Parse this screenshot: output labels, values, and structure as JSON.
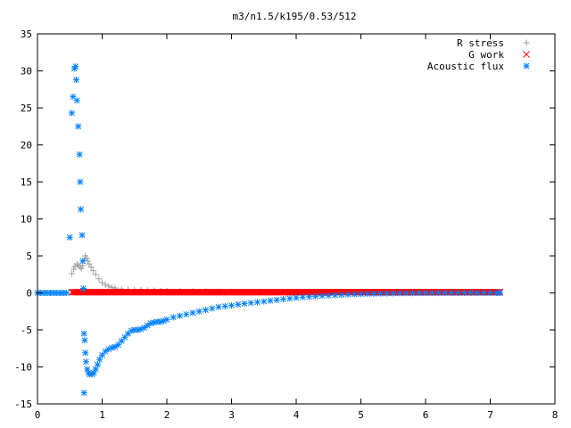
{
  "chart_data": {
    "type": "scatter",
    "title": "m3/n1.5/k195/0.53/512",
    "xlabel": "",
    "ylabel": "",
    "xlim": [
      0,
      8
    ],
    "ylim": [
      -15,
      35
    ],
    "xticks": [
      "0",
      "1",
      "2",
      "3",
      "4",
      "5",
      "6",
      "7",
      "8"
    ],
    "yticks": [
      "-15",
      "-10",
      "-5",
      "0",
      "5",
      "10",
      "15",
      "20",
      "25",
      "30",
      "35"
    ],
    "grid": false,
    "legend_position": "top-right",
    "series": [
      {
        "name": "R stress",
        "marker": "plus",
        "color": "#a0a0a0",
        "points": [
          [
            0.53,
            2.6
          ],
          [
            0.56,
            3.2
          ],
          [
            0.58,
            3.6
          ],
          [
            0.61,
            3.9
          ],
          [
            0.63,
            3.7
          ],
          [
            0.66,
            3.5
          ],
          [
            0.68,
            3.3
          ],
          [
            0.7,
            3.7
          ],
          [
            0.72,
            4.4
          ],
          [
            0.74,
            5.0
          ],
          [
            0.76,
            4.7
          ],
          [
            0.78,
            4.3
          ],
          [
            0.8,
            3.9
          ],
          [
            0.83,
            3.5
          ],
          [
            0.86,
            3.0
          ],
          [
            0.9,
            2.5
          ],
          [
            0.95,
            1.9
          ],
          [
            1.0,
            1.4
          ],
          [
            1.05,
            1.1
          ],
          [
            1.1,
            0.9
          ],
          [
            1.15,
            0.75
          ],
          [
            1.2,
            0.65
          ],
          [
            1.3,
            0.52
          ],
          [
            1.4,
            0.45
          ],
          [
            1.5,
            0.4
          ],
          [
            1.6,
            0.36
          ],
          [
            1.7,
            0.33
          ],
          [
            1.8,
            0.3
          ],
          [
            1.9,
            0.28
          ],
          [
            2.0,
            0.26
          ],
          [
            2.2,
            0.23
          ],
          [
            2.4,
            0.2
          ],
          [
            2.6,
            0.18
          ],
          [
            2.8,
            0.16
          ],
          [
            3.0,
            0.14
          ],
          [
            3.3,
            0.12
          ],
          [
            3.6,
            0.1
          ],
          [
            4.0,
            0.08
          ],
          [
            4.5,
            0.06
          ],
          [
            5.0,
            0.05
          ],
          [
            5.5,
            0.04
          ],
          [
            6.0,
            0.03
          ],
          [
            6.5,
            0.02
          ],
          [
            7.0,
            0.02
          ],
          [
            7.15,
            0.02
          ]
        ]
      },
      {
        "name": "G work",
        "marker": "cross",
        "color": "#ff0000",
        "x_range": [
          0.53,
          7.15
        ],
        "y_value": 0.1
      },
      {
        "name": "Acoustic flux",
        "marker": "star",
        "color": "#0080ff",
        "points": [
          [
            0.0,
            0.0
          ],
          [
            0.05,
            0.0
          ],
          [
            0.1,
            0.0
          ],
          [
            0.15,
            0.0
          ],
          [
            0.2,
            0.0
          ],
          [
            0.25,
            0.0
          ],
          [
            0.3,
            0.0
          ],
          [
            0.35,
            0.0
          ],
          [
            0.4,
            0.0
          ],
          [
            0.45,
            0.0
          ],
          [
            0.5,
            7.5
          ],
          [
            0.53,
            24.3
          ],
          [
            0.55,
            26.5
          ],
          [
            0.57,
            30.3
          ],
          [
            0.59,
            30.6
          ],
          [
            0.6,
            28.8
          ],
          [
            0.61,
            26.0
          ],
          [
            0.63,
            22.5
          ],
          [
            0.65,
            18.7
          ],
          [
            0.66,
            15.0
          ],
          [
            0.67,
            11.3
          ],
          [
            0.69,
            7.8
          ],
          [
            0.7,
            4.3
          ],
          [
            0.71,
            0.6
          ],
          [
            0.72,
            -5.5
          ],
          [
            0.73,
            -6.4
          ],
          [
            0.74,
            -8.1
          ],
          [
            0.75,
            -9.3
          ],
          [
            0.72,
            -13.5
          ],
          [
            0.77,
            -10.3
          ],
          [
            0.79,
            -10.8
          ],
          [
            0.81,
            -11.0
          ],
          [
            0.84,
            -11.0
          ],
          [
            0.87,
            -10.8
          ],
          [
            0.9,
            -10.3
          ],
          [
            0.93,
            -9.7
          ],
          [
            0.96,
            -9.0
          ],
          [
            1.0,
            -8.4
          ],
          [
            1.05,
            -7.9
          ],
          [
            1.1,
            -7.6
          ],
          [
            1.15,
            -7.4
          ],
          [
            1.2,
            -7.3
          ],
          [
            1.25,
            -7.0
          ],
          [
            1.3,
            -6.5
          ],
          [
            1.35,
            -6.0
          ],
          [
            1.4,
            -5.5
          ],
          [
            1.45,
            -5.1
          ],
          [
            1.5,
            -5.0
          ],
          [
            1.55,
            -5.0
          ],
          [
            1.6,
            -4.9
          ],
          [
            1.65,
            -4.7
          ],
          [
            1.7,
            -4.4
          ],
          [
            1.75,
            -4.1
          ],
          [
            1.8,
            -4.0
          ],
          [
            1.85,
            -3.9
          ],
          [
            1.9,
            -3.9
          ],
          [
            1.95,
            -3.8
          ],
          [
            2.0,
            -3.6
          ],
          [
            2.1,
            -3.3
          ],
          [
            2.2,
            -3.1
          ],
          [
            2.3,
            -2.9
          ],
          [
            2.4,
            -2.7
          ],
          [
            2.5,
            -2.5
          ],
          [
            2.6,
            -2.3
          ],
          [
            2.7,
            -2.1
          ],
          [
            2.8,
            -1.9
          ],
          [
            2.9,
            -1.8
          ],
          [
            3.0,
            -1.7
          ],
          [
            3.1,
            -1.55
          ],
          [
            3.2,
            -1.45
          ],
          [
            3.3,
            -1.35
          ],
          [
            3.4,
            -1.25
          ],
          [
            3.5,
            -1.15
          ],
          [
            3.6,
            -1.05
          ],
          [
            3.7,
            -0.95
          ],
          [
            3.8,
            -0.85
          ],
          [
            3.9,
            -0.75
          ],
          [
            4.0,
            -0.65
          ],
          [
            4.1,
            -0.58
          ],
          [
            4.2,
            -0.52
          ],
          [
            4.3,
            -0.46
          ],
          [
            4.4,
            -0.4
          ],
          [
            4.5,
            -0.35
          ],
          [
            4.6,
            -0.3
          ],
          [
            4.7,
            -0.26
          ],
          [
            4.8,
            -0.22
          ],
          [
            4.9,
            -0.19
          ],
          [
            5.0,
            -0.16
          ],
          [
            5.1,
            -0.13
          ],
          [
            5.2,
            -0.11
          ],
          [
            5.3,
            -0.09
          ],
          [
            5.4,
            -0.07
          ],
          [
            5.5,
            -0.06
          ],
          [
            5.6,
            -0.05
          ],
          [
            5.7,
            -0.04
          ],
          [
            5.8,
            -0.03
          ],
          [
            5.9,
            -0.02
          ],
          [
            6.0,
            -0.02
          ],
          [
            6.1,
            -0.01
          ],
          [
            6.2,
            -0.01
          ],
          [
            6.3,
            0.0
          ],
          [
            6.4,
            0.0
          ],
          [
            6.5,
            0.0
          ],
          [
            6.6,
            0.0
          ],
          [
            6.7,
            0.0
          ],
          [
            6.8,
            0.0
          ],
          [
            6.9,
            0.0
          ],
          [
            7.0,
            0.0
          ],
          [
            7.1,
            0.0
          ],
          [
            7.15,
            0.0
          ]
        ]
      }
    ]
  }
}
